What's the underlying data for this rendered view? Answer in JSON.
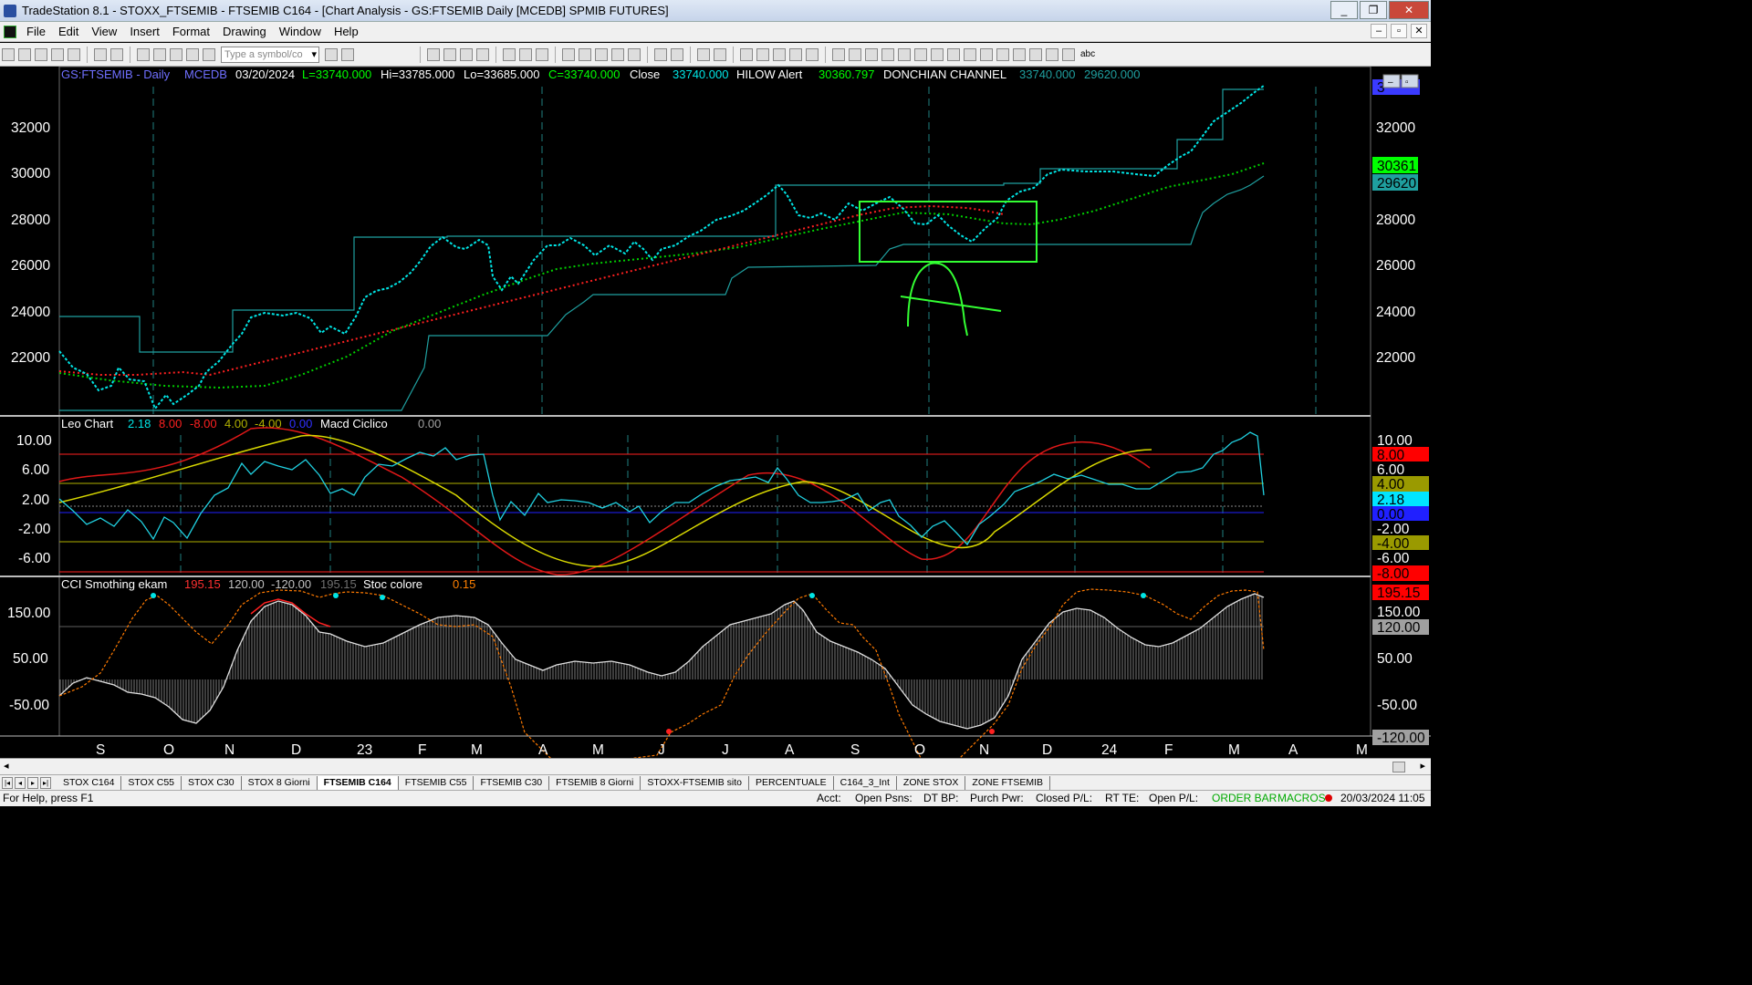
{
  "window": {
    "title": "TradeStation 8.1 - STOXX_FTSEMIB - FTSEMIB C164 - [Chart Analysis - GS:FTSEMIB  Daily  [MCEDB] SPMIB FUTURES]",
    "buttons": [
      "_",
      "❐",
      "✕"
    ]
  },
  "menu": [
    "File",
    "Edit",
    "View",
    "Insert",
    "Format",
    "Drawing",
    "Window",
    "Help"
  ],
  "toolbar": {
    "symbol_placeholder": "Type a symbol/co",
    "text_tool": "abc"
  },
  "price_pane": {
    "header": [
      {
        "text": "GS:FTSEMIB - Daily",
        "color": "#6f6fff"
      },
      {
        "text": "MCEDB",
        "color": "#6f6fff"
      },
      {
        "text": "03/20/2024",
        "color": "#ffffff"
      },
      {
        "text": "L=33740.000",
        "color": "#00ff00"
      },
      {
        "text": "Hi=33785.000",
        "color": "#ffffff"
      },
      {
        "text": "Lo=33685.000",
        "color": "#ffffff"
      },
      {
        "text": "C=33740.000",
        "color": "#00ff00"
      },
      {
        "text": "Close",
        "color": "#ffffff"
      },
      {
        "text": "33740.000",
        "color": "#00e5e5"
      },
      {
        "text": "HILOW Alert",
        "color": "#ffffff"
      },
      {
        "text": "30360.797",
        "color": "#00ff00"
      },
      {
        "text": "DONCHIAN CHANNEL",
        "color": "#ffffff"
      },
      {
        "text": "33740.000",
        "color": "#1f9f9f"
      },
      {
        "text": "29620.000",
        "color": "#1f9f9f"
      }
    ],
    "ticks": [
      "32000",
      "30000",
      "28000",
      "26000",
      "24000",
      "22000"
    ],
    "right_badges": [
      {
        "text": "30361",
        "bg": "#00ff00",
        "fg": "#000000"
      },
      {
        "text": "29620",
        "bg": "#1f9f9f",
        "fg": "#000000"
      },
      {
        "text": "3",
        "bg": "#3a3aff",
        "fg": "#000000"
      }
    ]
  },
  "osc_pane": {
    "header": [
      {
        "text": "Leo Chart",
        "color": "#ffffff"
      },
      {
        "text": "2.18",
        "color": "#00e5e5"
      },
      {
        "text": "8.00",
        "color": "#ff2020"
      },
      {
        "text": "-8.00",
        "color": "#ff2020"
      },
      {
        "text": "4.00",
        "color": "#b0b000"
      },
      {
        "text": "-4.00",
        "color": "#b0b000"
      },
      {
        "text": "0.00",
        "color": "#3030ff"
      },
      {
        "text": "Macd Ciclico",
        "color": "#ffffff"
      },
      {
        "text": "0.00",
        "color": "#a0a0a0"
      }
    ],
    "ticks": [
      "10.00",
      "6.00",
      "2.00",
      "-2.00",
      "-6.00"
    ],
    "right_badges": [
      {
        "text": "10.00",
        "bg": "#000000",
        "fg": "#ffffff"
      },
      {
        "text": "8.00",
        "bg": "#ff0000",
        "fg": "#000000"
      },
      {
        "text": "6.00",
        "bg": "#000000",
        "fg": "#ffffff"
      },
      {
        "text": "4.00",
        "bg": "#9a9a00",
        "fg": "#000000"
      },
      {
        "text": "2.18",
        "bg": "#00e5ff",
        "fg": "#000000"
      },
      {
        "text": "0.00",
        "bg": "#2020ff",
        "fg": "#000000"
      },
      {
        "text": "-2.00",
        "bg": "#000000",
        "fg": "#ffffff"
      },
      {
        "text": "-4.00",
        "bg": "#9a9a00",
        "fg": "#000000"
      },
      {
        "text": "-6.00",
        "bg": "#000000",
        "fg": "#ffffff"
      },
      {
        "text": "-8.00",
        "bg": "#ff0000",
        "fg": "#000000"
      }
    ]
  },
  "cci_pane": {
    "header": [
      {
        "text": "CCI Smothing ekam",
        "color": "#ffffff"
      },
      {
        "text": "195.15",
        "color": "#ff3030"
      },
      {
        "text": "120.00",
        "color": "#c0c0c0"
      },
      {
        "text": "-120.00",
        "color": "#c0c0c0"
      },
      {
        "text": "195.15",
        "color": "#707070"
      },
      {
        "text": "Stoc colore",
        "color": "#ffffff"
      },
      {
        "text": "0.15",
        "color": "#ff8000"
      }
    ],
    "ticks": [
      "150.00",
      "50.00",
      "-50.00"
    ],
    "right_badges": [
      {
        "text": "195.15",
        "bg": "#ff0000",
        "fg": "#000000"
      },
      {
        "text": "150.00",
        "bg": "#000000",
        "fg": "#ffffff"
      },
      {
        "text": "120.00",
        "bg": "#a0a0a0",
        "fg": "#000000"
      },
      {
        "text": "50.00",
        "bg": "#000000",
        "fg": "#ffffff"
      },
      {
        "text": "-50.00",
        "bg": "#000000",
        "fg": "#ffffff"
      },
      {
        "text": "-120.00",
        "bg": "#a0a0a0",
        "fg": "#000000"
      }
    ]
  },
  "x_axis_months": [
    "S",
    "O",
    "N",
    "D",
    "23",
    "F",
    "M",
    "A",
    "M",
    "J",
    "J",
    "A",
    "S",
    "O",
    "N",
    "D",
    "24",
    "F",
    "M",
    "A",
    "M"
  ],
  "tabs": [
    "STOX C164",
    "STOX C55",
    "STOX  C30",
    "STOX  8 Giorni",
    "FTSEMIB C164",
    "FTSEMIB C55",
    "FTSEMIB C30",
    "FTSEMIB  8 Giorni",
    "STOXX-FTSEMIB sito",
    "PERCENTUALE",
    "C164_3_Int",
    "ZONE STOX",
    "ZONE FTSEMIB"
  ],
  "active_tab": "FTSEMIB C164",
  "status": {
    "help": "For Help, press F1",
    "acct": "Acct:",
    "open_psns": "Open Psns:",
    "dt_bp": "DT BP:",
    "purch_pwr": "Purch Pwr:",
    "closed_pl": "Closed P/L:",
    "rt_te": "RT TE:",
    "open_pl": "Open P/L:",
    "order_bar": "ORDER BAR",
    "macros": "MACROS",
    "datetime": "20/03/2024 11:05"
  },
  "chart_data": {
    "type": "line",
    "title": "GS:FTSEMIB - Daily",
    "x": [
      "2022-09",
      "2022-10",
      "2022-11",
      "2022-12",
      "2023-01",
      "2023-02",
      "2023-03",
      "2023-04",
      "2023-05",
      "2023-06",
      "2023-07",
      "2023-08",
      "2023-09",
      "2023-10",
      "2023-11",
      "2023-12",
      "2024-01",
      "2024-02",
      "2024-03"
    ],
    "ylim": [
      20000,
      34000
    ],
    "series": [
      {
        "name": "Close",
        "values": [
          21400,
          21000,
          23600,
          24000,
          26800,
          27500,
          24900,
          27000,
          27200,
          27000,
          28500,
          29200,
          28700,
          27500,
          28500,
          30100,
          30200,
          31200,
          33740
        ]
      },
      {
        "name": "HILOW Alert",
        "values": [
          21100,
          21100,
          20800,
          22500,
          24500,
          25500,
          25700,
          26000,
          26200,
          26700,
          27200,
          27800,
          28000,
          28300,
          27600,
          28000,
          28700,
          29600,
          30360
        ]
      },
      {
        "name": "DONCHIAN CHANNEL",
        "values": [
          23700,
          22000,
          23700,
          23700,
          27200,
          27200,
          27200,
          27200,
          27200,
          27200,
          28400,
          29400,
          29400,
          29400,
          29400,
          30100,
          30100,
          31300,
          33740
        ]
      }
    ]
  }
}
